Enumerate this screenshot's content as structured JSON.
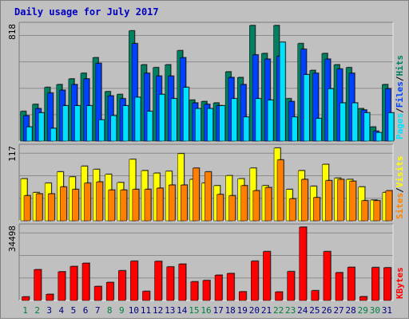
{
  "chart_data": [
    {
      "type": "bar",
      "title": "Daily usage for July 2017",
      "ylabel_parts": [
        "Pages",
        "/",
        "Files",
        "/",
        "Hits"
      ],
      "ymax_label": "818",
      "ylim": [
        0,
        818
      ],
      "categories": [
        "1",
        "2",
        "3",
        "4",
        "5",
        "6",
        "7",
        "8",
        "9",
        "10",
        "11",
        "12",
        "13",
        "14",
        "15",
        "16",
        "17",
        "18",
        "19",
        "20",
        "21",
        "22",
        "23",
        "24",
        "25",
        "26",
        "27",
        "28",
        "29",
        "30",
        "31"
      ],
      "weekend_days": [
        "1",
        "2",
        "8",
        "9",
        "15",
        "16",
        "22",
        "23",
        "29",
        "30"
      ],
      "series": [
        {
          "name": "Hits",
          "values": [
            210,
            260,
            380,
            400,
            440,
            480,
            590,
            350,
            330,
            780,
            540,
            520,
            540,
            640,
            290,
            280,
            270,
            490,
            450,
            818,
            620,
            818,
            300,
            690,
            500,
            620,
            540,
            520,
            230,
            100,
            400
          ]
        },
        {
          "name": "Files",
          "values": [
            180,
            230,
            340,
            360,
            400,
            440,
            550,
            320,
            300,
            690,
            480,
            460,
            460,
            590,
            270,
            260,
            250,
            450,
            400,
            610,
            580,
            600,
            280,
            650,
            480,
            580,
            510,
            480,
            220,
            70,
            370
          ]
        },
        {
          "name": "Pages",
          "values": [
            100,
            200,
            90,
            250,
            250,
            250,
            150,
            180,
            250,
            310,
            210,
            330,
            300,
            380,
            230,
            230,
            250,
            300,
            170,
            300,
            290,
            700,
            170,
            470,
            160,
            370,
            270,
            270,
            200,
            60,
            200
          ]
        }
      ]
    },
    {
      "type": "bar",
      "ylabel_parts": [
        "Sites",
        "/",
        "Visits"
      ],
      "ymax_label": "117",
      "ylim": [
        0,
        117
      ],
      "categories": [
        "1",
        "2",
        "3",
        "4",
        "5",
        "6",
        "7",
        "8",
        "9",
        "10",
        "11",
        "12",
        "13",
        "14",
        "15",
        "16",
        "17",
        "18",
        "19",
        "20",
        "21",
        "22",
        "23",
        "24",
        "25",
        "26",
        "27",
        "28",
        "29",
        "30",
        "31"
      ],
      "series": [
        {
          "name": "Visits",
          "values": [
            67,
            45,
            60,
            78,
            70,
            87,
            82,
            74,
            61,
            98,
            80,
            76,
            79,
            107,
            66,
            60,
            56,
            72,
            67,
            84,
            56,
            116,
            50,
            80,
            55,
            90,
            68,
            66,
            54,
            33,
            45
          ]
        },
        {
          "name": "Sites",
          "values": [
            40,
            43,
            43,
            54,
            50,
            60,
            62,
            49,
            49,
            50,
            50,
            52,
            57,
            57,
            84,
            78,
            42,
            40,
            56,
            48,
            53,
            97,
            35,
            66,
            37,
            64,
            66,
            63,
            32,
            32,
            48
          ]
        }
      ]
    },
    {
      "type": "bar",
      "ylabel_parts": [
        "KBytes"
      ],
      "ymax_label": "34498",
      "ylim": [
        0,
        34498
      ],
      "categories": [
        "1",
        "2",
        "3",
        "4",
        "5",
        "6",
        "7",
        "8",
        "9",
        "10",
        "11",
        "12",
        "13",
        "14",
        "15",
        "16",
        "17",
        "18",
        "19",
        "20",
        "21",
        "22",
        "23",
        "24",
        "25",
        "26",
        "27",
        "28",
        "29",
        "30",
        "31"
      ],
      "series": [
        {
          "name": "KBytes",
          "values": [
            1700,
            14500,
            2900,
            13500,
            16000,
            17500,
            6600,
            8500,
            14000,
            18500,
            4300,
            18400,
            15800,
            17100,
            8800,
            9400,
            11900,
            12700,
            4100,
            18500,
            23000,
            4000,
            13600,
            34498,
            4600,
            23000,
            13100,
            15600,
            1800,
            15500,
            15400
          ]
        }
      ]
    }
  ],
  "colors": {
    "border_light": "#e8e8e8",
    "border_dark": "#7a7a7a",
    "panel": "#c0c0c0",
    "grid": "#8c8c8c",
    "title_text": "#0000c0",
    "hits": "#008060",
    "files": "#0040ff",
    "pages": "#00e0ff",
    "visits": "#ffff00",
    "sites": "#ff8000",
    "kbytes": "#ff0000",
    "weekday_label": "#000080",
    "weekend_label": "#008040"
  }
}
